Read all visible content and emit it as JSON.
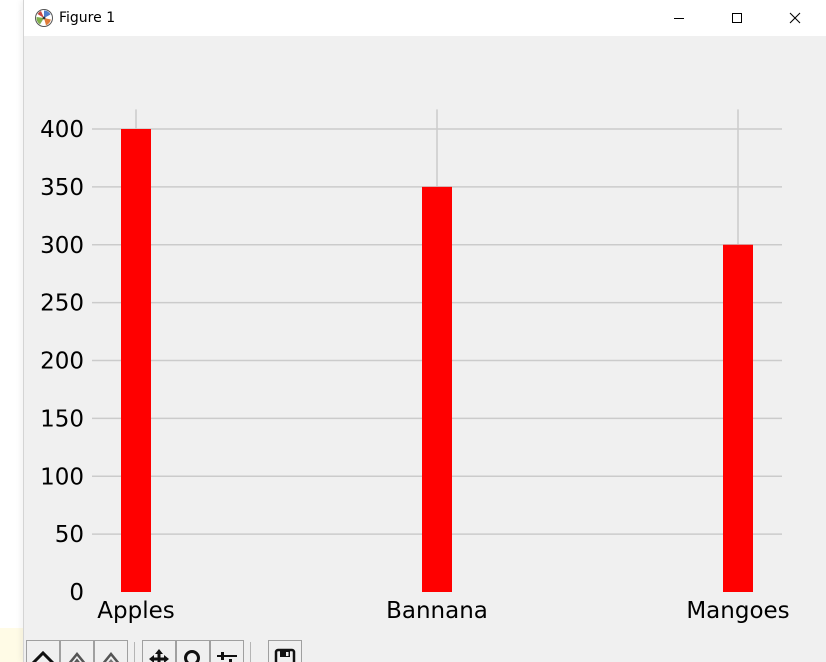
{
  "window": {
    "title": "Figure 1",
    "controls": [
      "minimize-icon",
      "maximize-icon",
      "close-icon"
    ]
  },
  "toolbar": {
    "buttons": [
      "home-icon",
      "back-icon",
      "forward-icon",
      "pan-icon",
      "zoom-icon",
      "configure-subplots-icon",
      "save-icon"
    ]
  },
  "chart_data": {
    "type": "bar",
    "categories": [
      "Apples",
      "Bannana",
      "Mangoes"
    ],
    "values": [
      400,
      350,
      300
    ],
    "title": "",
    "xlabel": "",
    "ylabel": "",
    "ylim": [
      0,
      417
    ],
    "yticks": [
      0,
      50,
      100,
      150,
      200,
      250,
      300,
      350,
      400
    ],
    "grid": true,
    "bar_color": "#ff0000",
    "grid_color": "#cbcbcb"
  }
}
